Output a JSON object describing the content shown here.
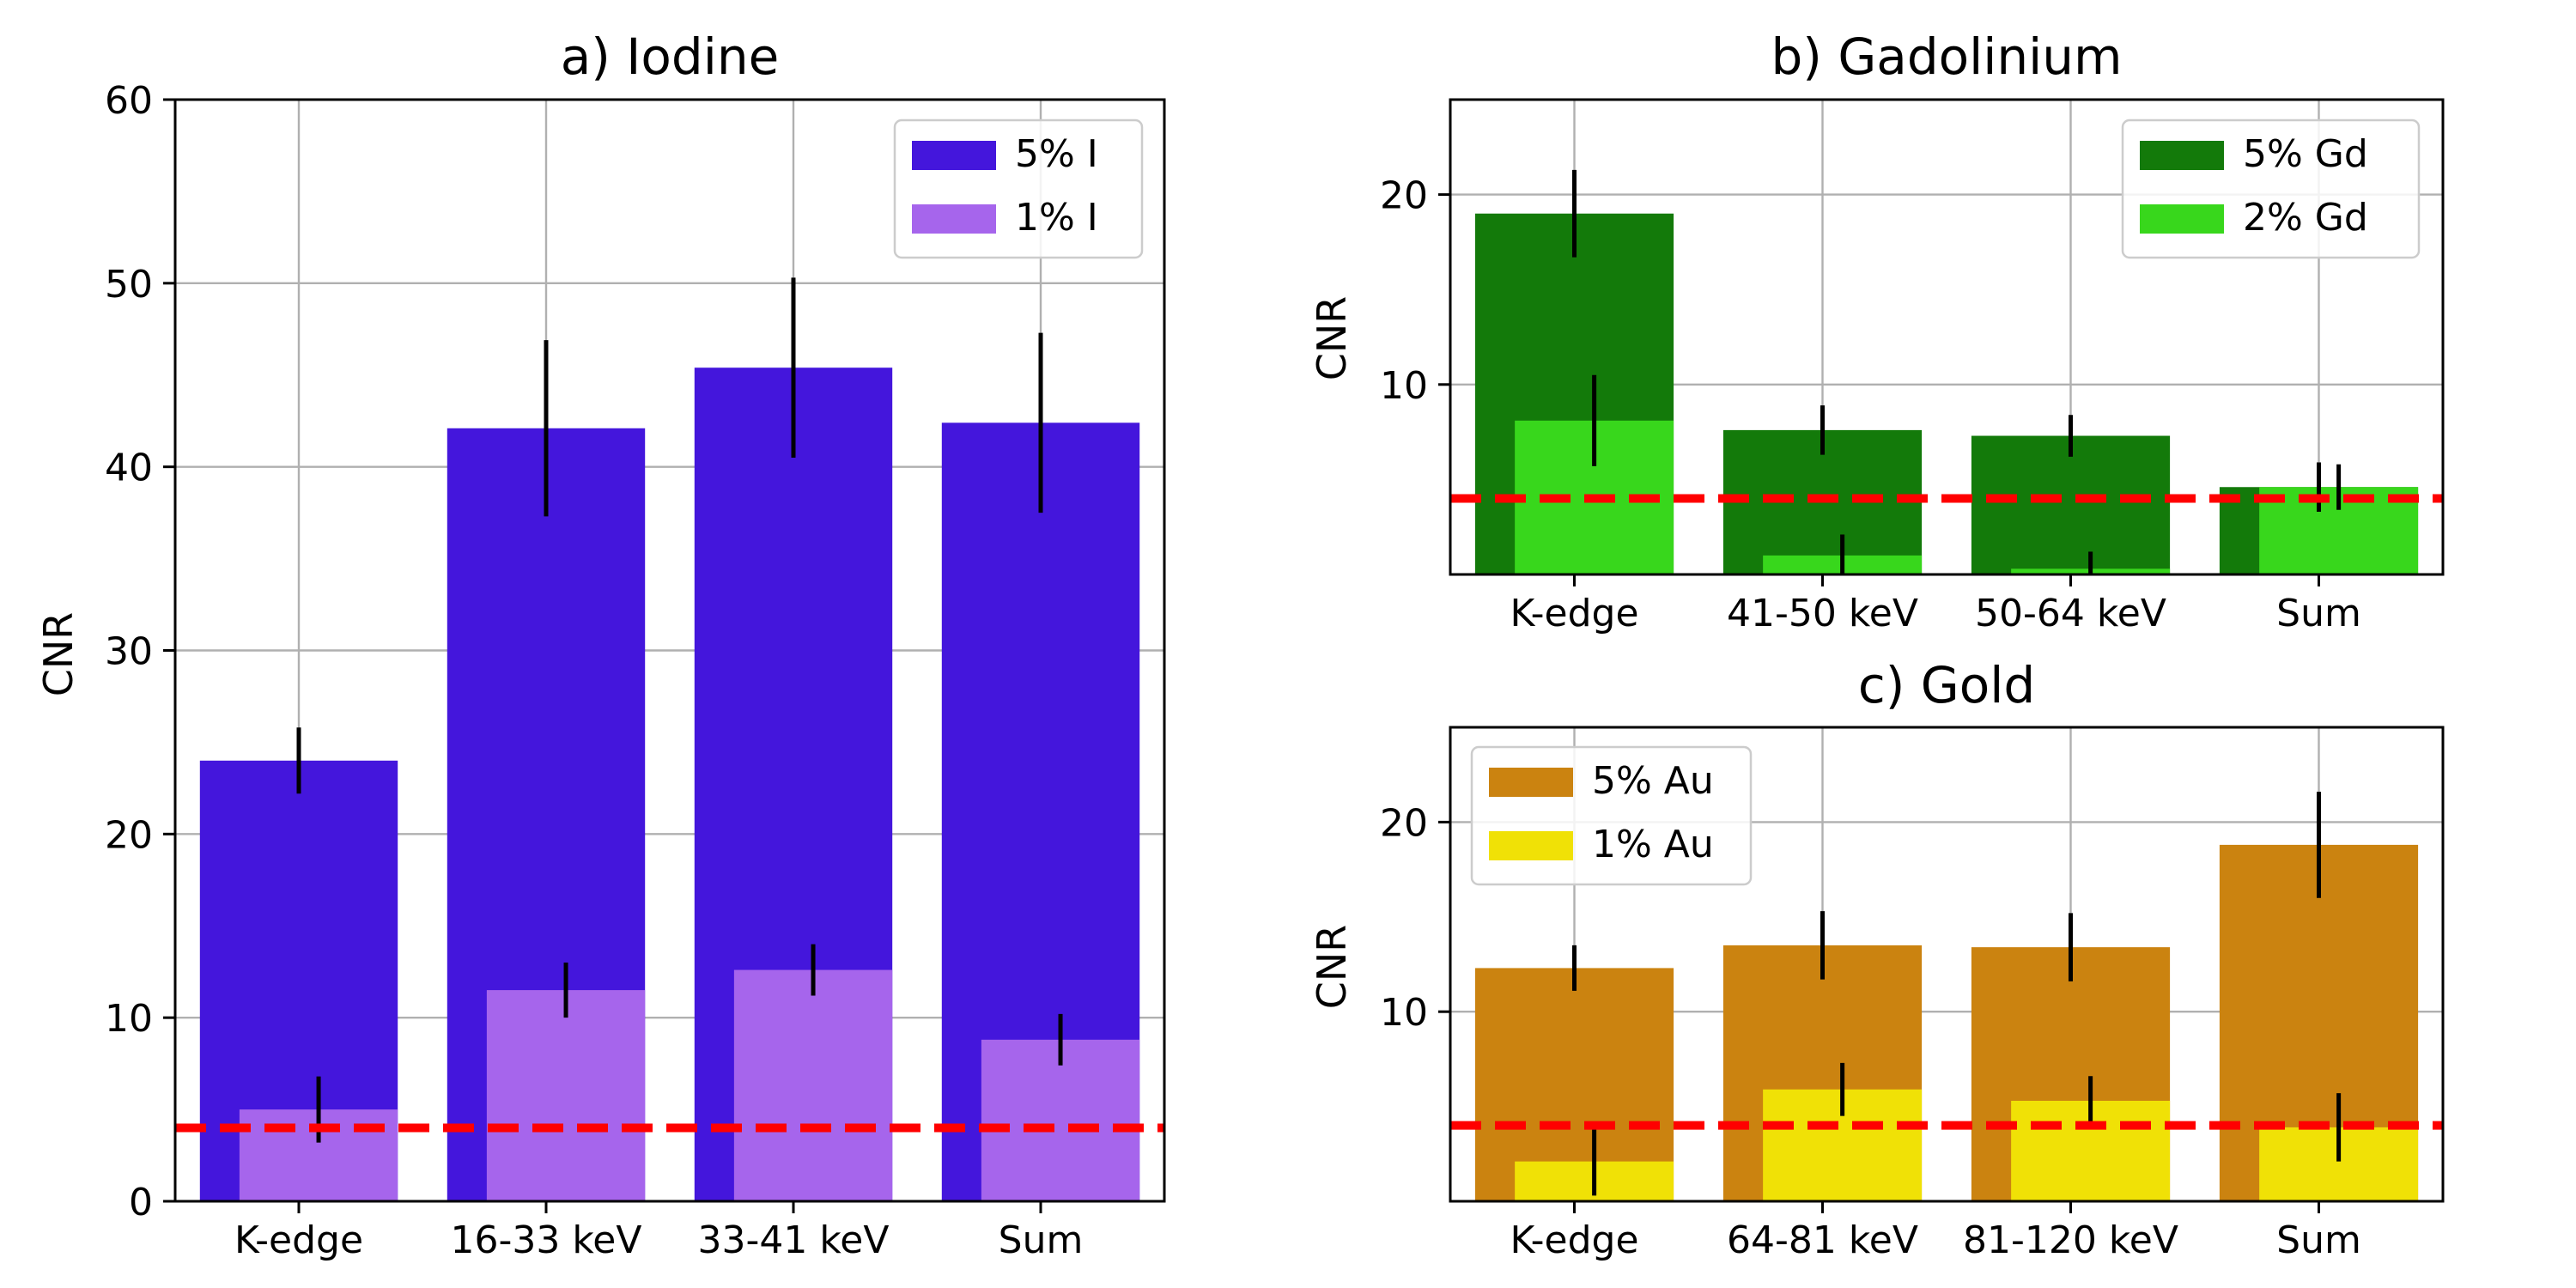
{
  "chart_data": [
    {
      "type": "bar",
      "title": "a) Iodine",
      "xlabel": "",
      "ylabel": "CNR",
      "ylim": [
        0,
        60
      ],
      "yticks": [
        0,
        10,
        20,
        30,
        40,
        50,
        60
      ],
      "categories": [
        "K-edge",
        "16-33 keV",
        "33-41 keV",
        "Sum"
      ],
      "grid": true,
      "legend_position": "top-right",
      "threshold_line": {
        "value": 4,
        "color": "#ff0000",
        "style": "dashed"
      },
      "series": [
        {
          "name": "5% I",
          "color": "#4416dc",
          "values": [
            24.0,
            42.1,
            45.4,
            42.4
          ],
          "errors": [
            1.8,
            4.8,
            4.9,
            4.9
          ]
        },
        {
          "name": "1% I",
          "color": "#a665ec",
          "values": [
            5.0,
            11.5,
            12.6,
            8.8
          ],
          "errors": [
            1.8,
            1.5,
            1.4,
            1.4
          ]
        }
      ]
    },
    {
      "type": "bar",
      "title": "b) Gadolinium",
      "xlabel": "",
      "ylabel": "CNR",
      "ylim": [
        0,
        25
      ],
      "yticks": [
        10,
        20
      ],
      "categories": [
        "K-edge",
        "41-50 keV",
        "50-64 keV",
        "Sum"
      ],
      "grid": true,
      "legend_position": "top-right",
      "threshold_line": {
        "value": 4,
        "color": "#ff0000",
        "style": "dashed"
      },
      "series": [
        {
          "name": "5% Gd",
          "color": "#137a0a",
          "values": [
            19.0,
            7.6,
            7.3,
            4.6
          ],
          "errors": [
            2.3,
            1.3,
            1.1,
            1.3
          ]
        },
        {
          "name": "2% Gd",
          "color": "#38d71c",
          "values": [
            8.1,
            1.0,
            0.3,
            4.6
          ],
          "errors": [
            2.4,
            1.1,
            0.9,
            1.2
          ]
        }
      ]
    },
    {
      "type": "bar",
      "title": "c) Gold",
      "xlabel": "",
      "ylabel": "CNR",
      "ylim": [
        0,
        25
      ],
      "yticks": [
        10,
        20
      ],
      "categories": [
        "K-edge",
        "64-81 keV",
        "81-120 keV",
        "Sum"
      ],
      "grid": true,
      "legend_position": "top-left",
      "threshold_line": {
        "value": 4,
        "color": "#ff0000",
        "style": "dashed"
      },
      "series": [
        {
          "name": "5% Au",
          "color": "#cb8310",
          "values": [
            12.3,
            13.5,
            13.4,
            18.8
          ],
          "errors": [
            1.2,
            1.8,
            1.8,
            2.8
          ]
        },
        {
          "name": "1% Au",
          "color": "#f0e106",
          "values": [
            2.1,
            5.9,
            5.3,
            3.9
          ],
          "errors": [
            1.8,
            1.4,
            1.3,
            1.8
          ]
        }
      ]
    }
  ]
}
